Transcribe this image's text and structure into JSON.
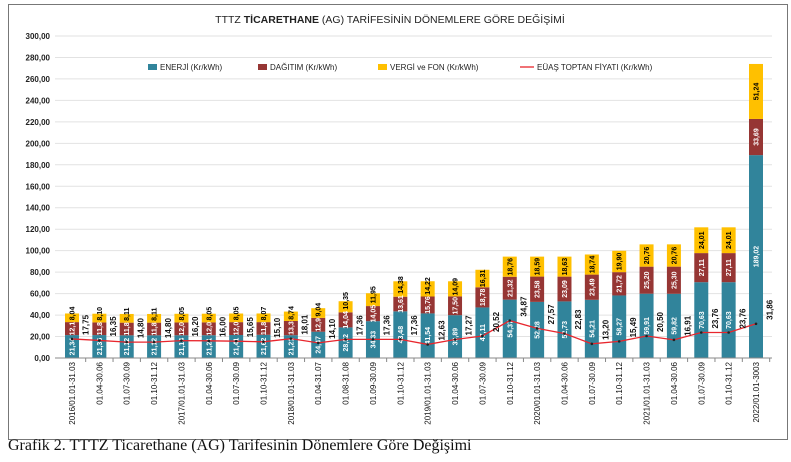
{
  "caption": "Grafik 2. TTTZ Ticarethane (AG) Tarifesinin Dönemlere Göre Değişimi",
  "chart_data": {
    "type": "bar",
    "stacked": true,
    "title_prefix": "TTTZ ",
    "title_bold": "TİCARETHANE",
    "title_suffix": " (AG) TARİFESİNİN DÖNEMLERE GÖRE DEĞİŞİMİ",
    "ylim": [
      0,
      300
    ],
    "yticks": [
      "0,00",
      "20,00",
      "40,00",
      "60,00",
      "80,00",
      "100,00",
      "120,00",
      "140,00",
      "160,00",
      "180,00",
      "200,00",
      "220,00",
      "240,00",
      "260,00",
      "280,00",
      "300,00"
    ],
    "grid": true,
    "legend_position": "top",
    "categories": [
      "2016/01.01-31.03",
      "01.04-30.06",
      "01.07-30.09",
      "01.10-31.12",
      "2017/01.01-31.03",
      "01.04-30.06",
      "01.07-30.09",
      "01.10-31.12",
      "2018/01.01-31.03",
      "01.04-31.07",
      "01.08-31.08",
      "01.09-30.09",
      "01.10-31.12",
      "2019/01.01-31.03",
      "01.04-30.06",
      "01.07-30.09",
      "01.10-31.12",
      "2020/01.01-31.03",
      "01.04-30.06",
      "01.07-30.09",
      "01.10-31.12",
      "2021/01.01-31.03",
      "01.04-30.06",
      "01.07-30.09",
      "01.10-31.12",
      "2022/01.01-3003"
    ],
    "series": [
      {
        "name": "ENERJİ (Kr/kWh)",
        "color": "#31849b",
        "label_color": "#ffffff",
        "values": [
          21.34,
          21.36,
          21.12,
          21.12,
          21.14,
          21.21,
          21.41,
          21.62,
          21.21,
          24.47,
          28.52,
          34.33,
          43.48,
          41.54,
          39.89,
          47.11,
          54.37,
          52.28,
          52.73,
          54.21,
          58.27,
          59.91,
          59.82,
          70.63,
          70.63,
          189.02
        ],
        "labels": [
          "21,34",
          "21,36",
          "21,12",
          "21,12",
          "21,14",
          "21,21",
          "21,41",
          "21,62",
          "21,21",
          "24,47",
          "28,52",
          "34,33",
          "43,48",
          "41,54",
          "39,89",
          "47,11",
          "54,37",
          "52,28",
          "52,73",
          "54,21",
          "58,27",
          "59,91",
          "59,82",
          "70,63",
          "70,63",
          "189,02"
        ]
      },
      {
        "name": "DAĞITIM (Kr/kWh)",
        "color": "#963634",
        "label_color": "#ffffff",
        "values": [
          12.1,
          11.8,
          11.8,
          11.8,
          12.0,
          12.0,
          12.0,
          11.8,
          13.3,
          12.9,
          14.04,
          14.05,
          13.61,
          15.76,
          17.5,
          18.78,
          21.32,
          23.58,
          23.09,
          23.49,
          21.72,
          25.2,
          25.3,
          27.11,
          27.11,
          33.69
        ],
        "labels": [
          "12,1",
          "11,8",
          "11,8",
          "11,8",
          "12,0",
          "12,0",
          "12,0",
          "11,8",
          "13,3",
          "12,9",
          "14,04",
          "14,05",
          "13,61",
          "15,76",
          "17,50",
          "18,78",
          "21,32",
          "23,58",
          "23,09",
          "23,49",
          "21,72",
          "25,20",
          "25,30",
          "27,11",
          "27,11",
          "33,69"
        ]
      },
      {
        "name": "VERGİ ve FON (Kr/kWh)",
        "color": "#ffc000",
        "label_color": "#000000",
        "values": [
          8.04,
          8.1,
          8.11,
          8.11,
          8.05,
          8.05,
          8.05,
          8.07,
          8.74,
          9.04,
          10.35,
          11.95,
          14.38,
          14.22,
          14.09,
          16.31,
          18.76,
          18.59,
          18.63,
          18.74,
          19.9,
          20.76,
          20.76,
          24.01,
          24.01,
          51.24
        ],
        "labels": [
          "8,04",
          "8,10",
          "8,11",
          "8,11",
          "8,05",
          "8,05",
          "8,05",
          "8,07",
          "8,74",
          "9,04",
          "10,35",
          "11,95",
          "14,38",
          "14,22",
          "14,09",
          "16,31",
          "18,76",
          "18,59",
          "18,63",
          "18,74",
          "19,90",
          "20,76",
          "20,76",
          "24,01",
          "24,01",
          "51,24"
        ]
      }
    ],
    "line_series": {
      "name": "EÜAŞ TOPTAN FİYATI (Kr/kWh)",
      "color": "#e8262d",
      "values": [
        17.75,
        16.35,
        14.8,
        14.8,
        16.2,
        16.0,
        15.65,
        15.1,
        18.01,
        14.1,
        17.36,
        17.36,
        17.36,
        12.63,
        17.27,
        20.52,
        34.87,
        27.57,
        22.83,
        13.2,
        15.49,
        20.5,
        16.91,
        23.76,
        23.76,
        31.86
      ],
      "labels": [
        "17,75",
        "16,35",
        "14,80",
        "14,80",
        "16,20",
        "16,00",
        "15,65",
        "15,10",
        "18,01",
        "14,10",
        "17,36",
        "17,36",
        "17,36",
        "12,63",
        "17,27",
        "20,52",
        "34,87",
        "27,57",
        "22,83",
        "13,20",
        "15,49",
        "20,50",
        "16,91",
        "23,76",
        "23,76",
        "31,86"
      ]
    }
  }
}
